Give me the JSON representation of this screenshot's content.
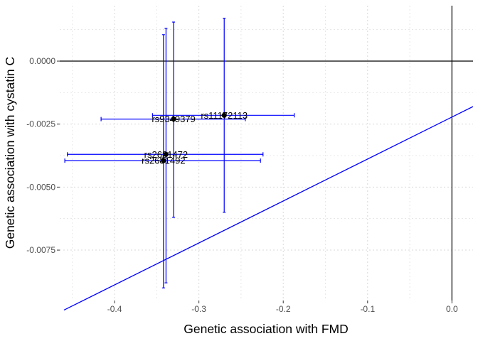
{
  "chart_data": {
    "type": "scatter",
    "title": "",
    "xlabel": "Genetic association with FMD",
    "ylabel": "Genetic association with cystatin C",
    "xlim": [
      -0.465,
      0.025
    ],
    "ylim": [
      -0.0095,
      0.0022
    ],
    "x_ticks": [
      -0.4,
      -0.3,
      -0.2,
      -0.1,
      0.0
    ],
    "x_tick_labels": [
      "-0.4",
      "-0.3",
      "-0.2",
      "-0.1",
      "0.0"
    ],
    "y_ticks": [
      0.0,
      -0.0025,
      -0.005,
      -0.0075
    ],
    "y_tick_labels": [
      "0.0000",
      "-0.0025",
      "-0.0050",
      "-0.0075"
    ],
    "grid": true,
    "points": [
      {
        "label": "rs11172113",
        "x": -0.27,
        "y": -0.00215,
        "x_low": -0.355,
        "x_high": -0.187,
        "y_low": -0.006,
        "y_high": 0.0017
      },
      {
        "label": "rs9349379",
        "x": -0.33,
        "y": -0.0023,
        "x_low": -0.416,
        "x_high": -0.245,
        "y_low": -0.0062,
        "y_high": 0.00155
      },
      {
        "label": "rs2681472",
        "x": -0.339,
        "y": -0.0037,
        "x_low": -0.456,
        "x_high": -0.224,
        "y_low": -0.0088,
        "y_high": 0.0013
      },
      {
        "label": "rs2681492",
        "x": -0.342,
        "y": -0.00395,
        "x_low": -0.459,
        "x_high": -0.227,
        "y_low": -0.009,
        "y_high": 0.00105
      }
    ],
    "reference_lines": {
      "h": 0.0,
      "v": 0.0
    },
    "fit_line": {
      "intercept": -0.00222,
      "slope": 0.01665,
      "color": "#0000FF"
    },
    "colors": {
      "errorbar": "#0000FF",
      "point": "#000000",
      "reference": "#000000",
      "grid": "#d9d9d9"
    }
  }
}
